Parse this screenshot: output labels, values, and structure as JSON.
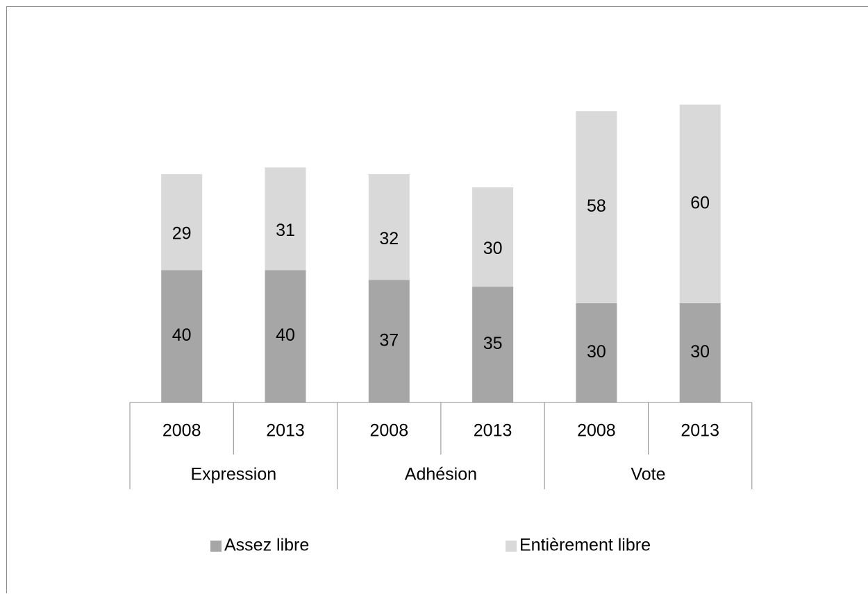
{
  "chart_data": {
    "type": "bar",
    "stacked": true,
    "groups": [
      {
        "label": "Expression",
        "years": [
          "2008",
          "2013"
        ]
      },
      {
        "label": "Adhésion",
        "years": [
          "2008",
          "2013"
        ]
      },
      {
        "label": "Vote",
        "years": [
          "2008",
          "2013"
        ]
      }
    ],
    "categories": [
      "2008",
      "2013",
      "2008",
      "2013",
      "2008",
      "2013"
    ],
    "series": [
      {
        "name": "Assez libre",
        "color": "#a6a6a6",
        "values": [
          40,
          40,
          37,
          35,
          30,
          30
        ]
      },
      {
        "name": "Entièrement libre",
        "color": "#d9d9d9",
        "values": [
          29,
          31,
          32,
          30,
          58,
          60
        ]
      }
    ],
    "ylim": [
      0,
      100
    ],
    "grid": false,
    "legend_position": "bottom"
  }
}
